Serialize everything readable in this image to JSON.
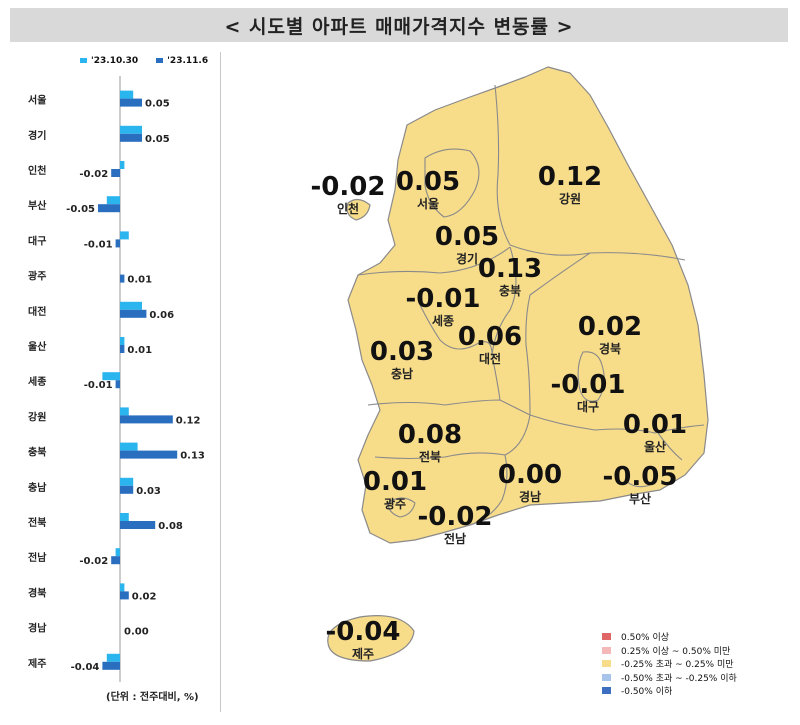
{
  "title": "< 시도별 아파트 매매가격지수 변동률 >",
  "unit_note": "(단위 : 전주대비, %)",
  "colors": {
    "series_prev": "#2bb5ee",
    "series_curr": "#2a6ebf",
    "map_fill": "#f7dc8a",
    "map_border": "#8a8a8a"
  },
  "chart_data": {
    "type": "bar",
    "orientation": "horizontal",
    "categories": [
      "서울",
      "경기",
      "인천",
      "부산",
      "대구",
      "광주",
      "대전",
      "울산",
      "세종",
      "강원",
      "충북",
      "충남",
      "전북",
      "전남",
      "경북",
      "경남",
      "제주"
    ],
    "series": [
      {
        "name": "'23.10.30",
        "values": [
          0.03,
          0.05,
          0.01,
          -0.03,
          0.02,
          0.0,
          0.05,
          0.01,
          -0.04,
          0.02,
          0.04,
          0.03,
          0.02,
          -0.01,
          0.01,
          0.0,
          -0.03
        ]
      },
      {
        "name": "'23.11.6",
        "values": [
          0.05,
          0.05,
          -0.02,
          -0.05,
          -0.01,
          0.01,
          0.06,
          0.01,
          -0.01,
          0.12,
          0.13,
          0.03,
          0.08,
          -0.02,
          0.02,
          0.0,
          -0.04
        ]
      }
    ],
    "value_labels": [
      "0.05",
      "0.05",
      "-0.02",
      "-0.05",
      "-0.01",
      "0.01",
      "0.06",
      "0.01",
      "-0.01",
      "0.12",
      "0.13",
      "0.03",
      "0.08",
      "-0.02",
      "0.02",
      "0.00",
      "-0.04"
    ],
    "xlim": [
      -0.1,
      0.2
    ],
    "legend": "top"
  },
  "map": {
    "regions": [
      {
        "name": "서울",
        "value": "0.05"
      },
      {
        "name": "경기",
        "value": "0.05"
      },
      {
        "name": "인천",
        "value": "-0.02"
      },
      {
        "name": "강원",
        "value": "0.12"
      },
      {
        "name": "충북",
        "value": "0.13"
      },
      {
        "name": "세종",
        "value": "-0.01"
      },
      {
        "name": "대전",
        "value": "0.06"
      },
      {
        "name": "충남",
        "value": "0.03"
      },
      {
        "name": "경북",
        "value": "0.02"
      },
      {
        "name": "대구",
        "value": "-0.01"
      },
      {
        "name": "울산",
        "value": "0.01"
      },
      {
        "name": "전북",
        "value": "0.08"
      },
      {
        "name": "광주",
        "value": "0.01"
      },
      {
        "name": "경남",
        "value": "0.00"
      },
      {
        "name": "부산",
        "value": "-0.05"
      },
      {
        "name": "전남",
        "value": "-0.02"
      },
      {
        "name": "제주",
        "value": "-0.04"
      }
    ],
    "legend": [
      {
        "label": "0.50% 이상",
        "color": "#e06666"
      },
      {
        "label": "0.25% 이상 ~ 0.50% 미만",
        "color": "#f4b8b8"
      },
      {
        "label": "-0.25% 초과 ~ 0.25% 미만",
        "color": "#f7dc8a"
      },
      {
        "label": "-0.50% 초과 ~ -0.25% 이하",
        "color": "#a9c4ea"
      },
      {
        "label": "-0.50% 이하",
        "color": "#3c6fc0"
      }
    ]
  }
}
